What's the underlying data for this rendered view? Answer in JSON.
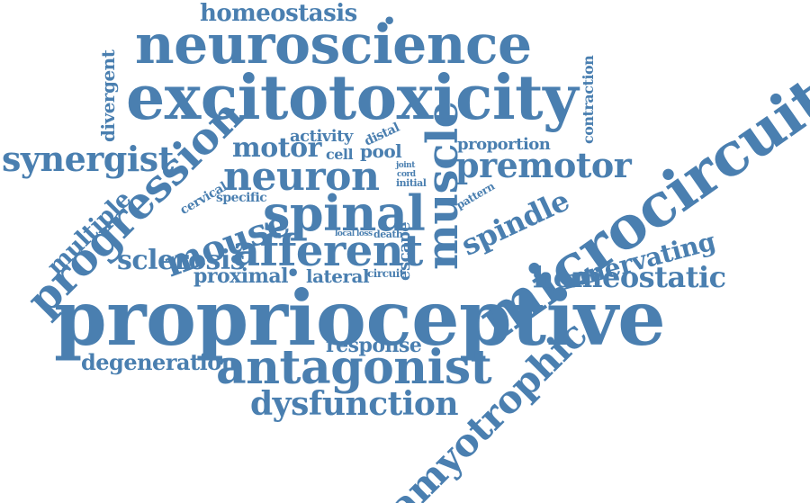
{
  "color": "#4a7fb0",
  "words": [
    "homeostasis",
    "neuroscience",
    "excitotoxicity",
    "divergent",
    "contraction",
    "synergist",
    "progression",
    "motor",
    "activity",
    "distal",
    "cell",
    "pool",
    "muscle",
    "proportion",
    "premotor",
    "microcircuit",
    "neuron",
    "joint",
    "cord",
    "initial",
    "cervical",
    "specific",
    "pattern",
    "multiple",
    "spinal",
    "spindle",
    "mouse",
    "local",
    "loss",
    "death",
    "afferent",
    "escape",
    "innervating",
    "sclerosis",
    "proximal",
    "lateral",
    "circuit",
    "homeostatic",
    "proprioceptive",
    "response",
    "degeneration",
    "antagonist",
    "amyotrophic",
    "dysfunction"
  ]
}
